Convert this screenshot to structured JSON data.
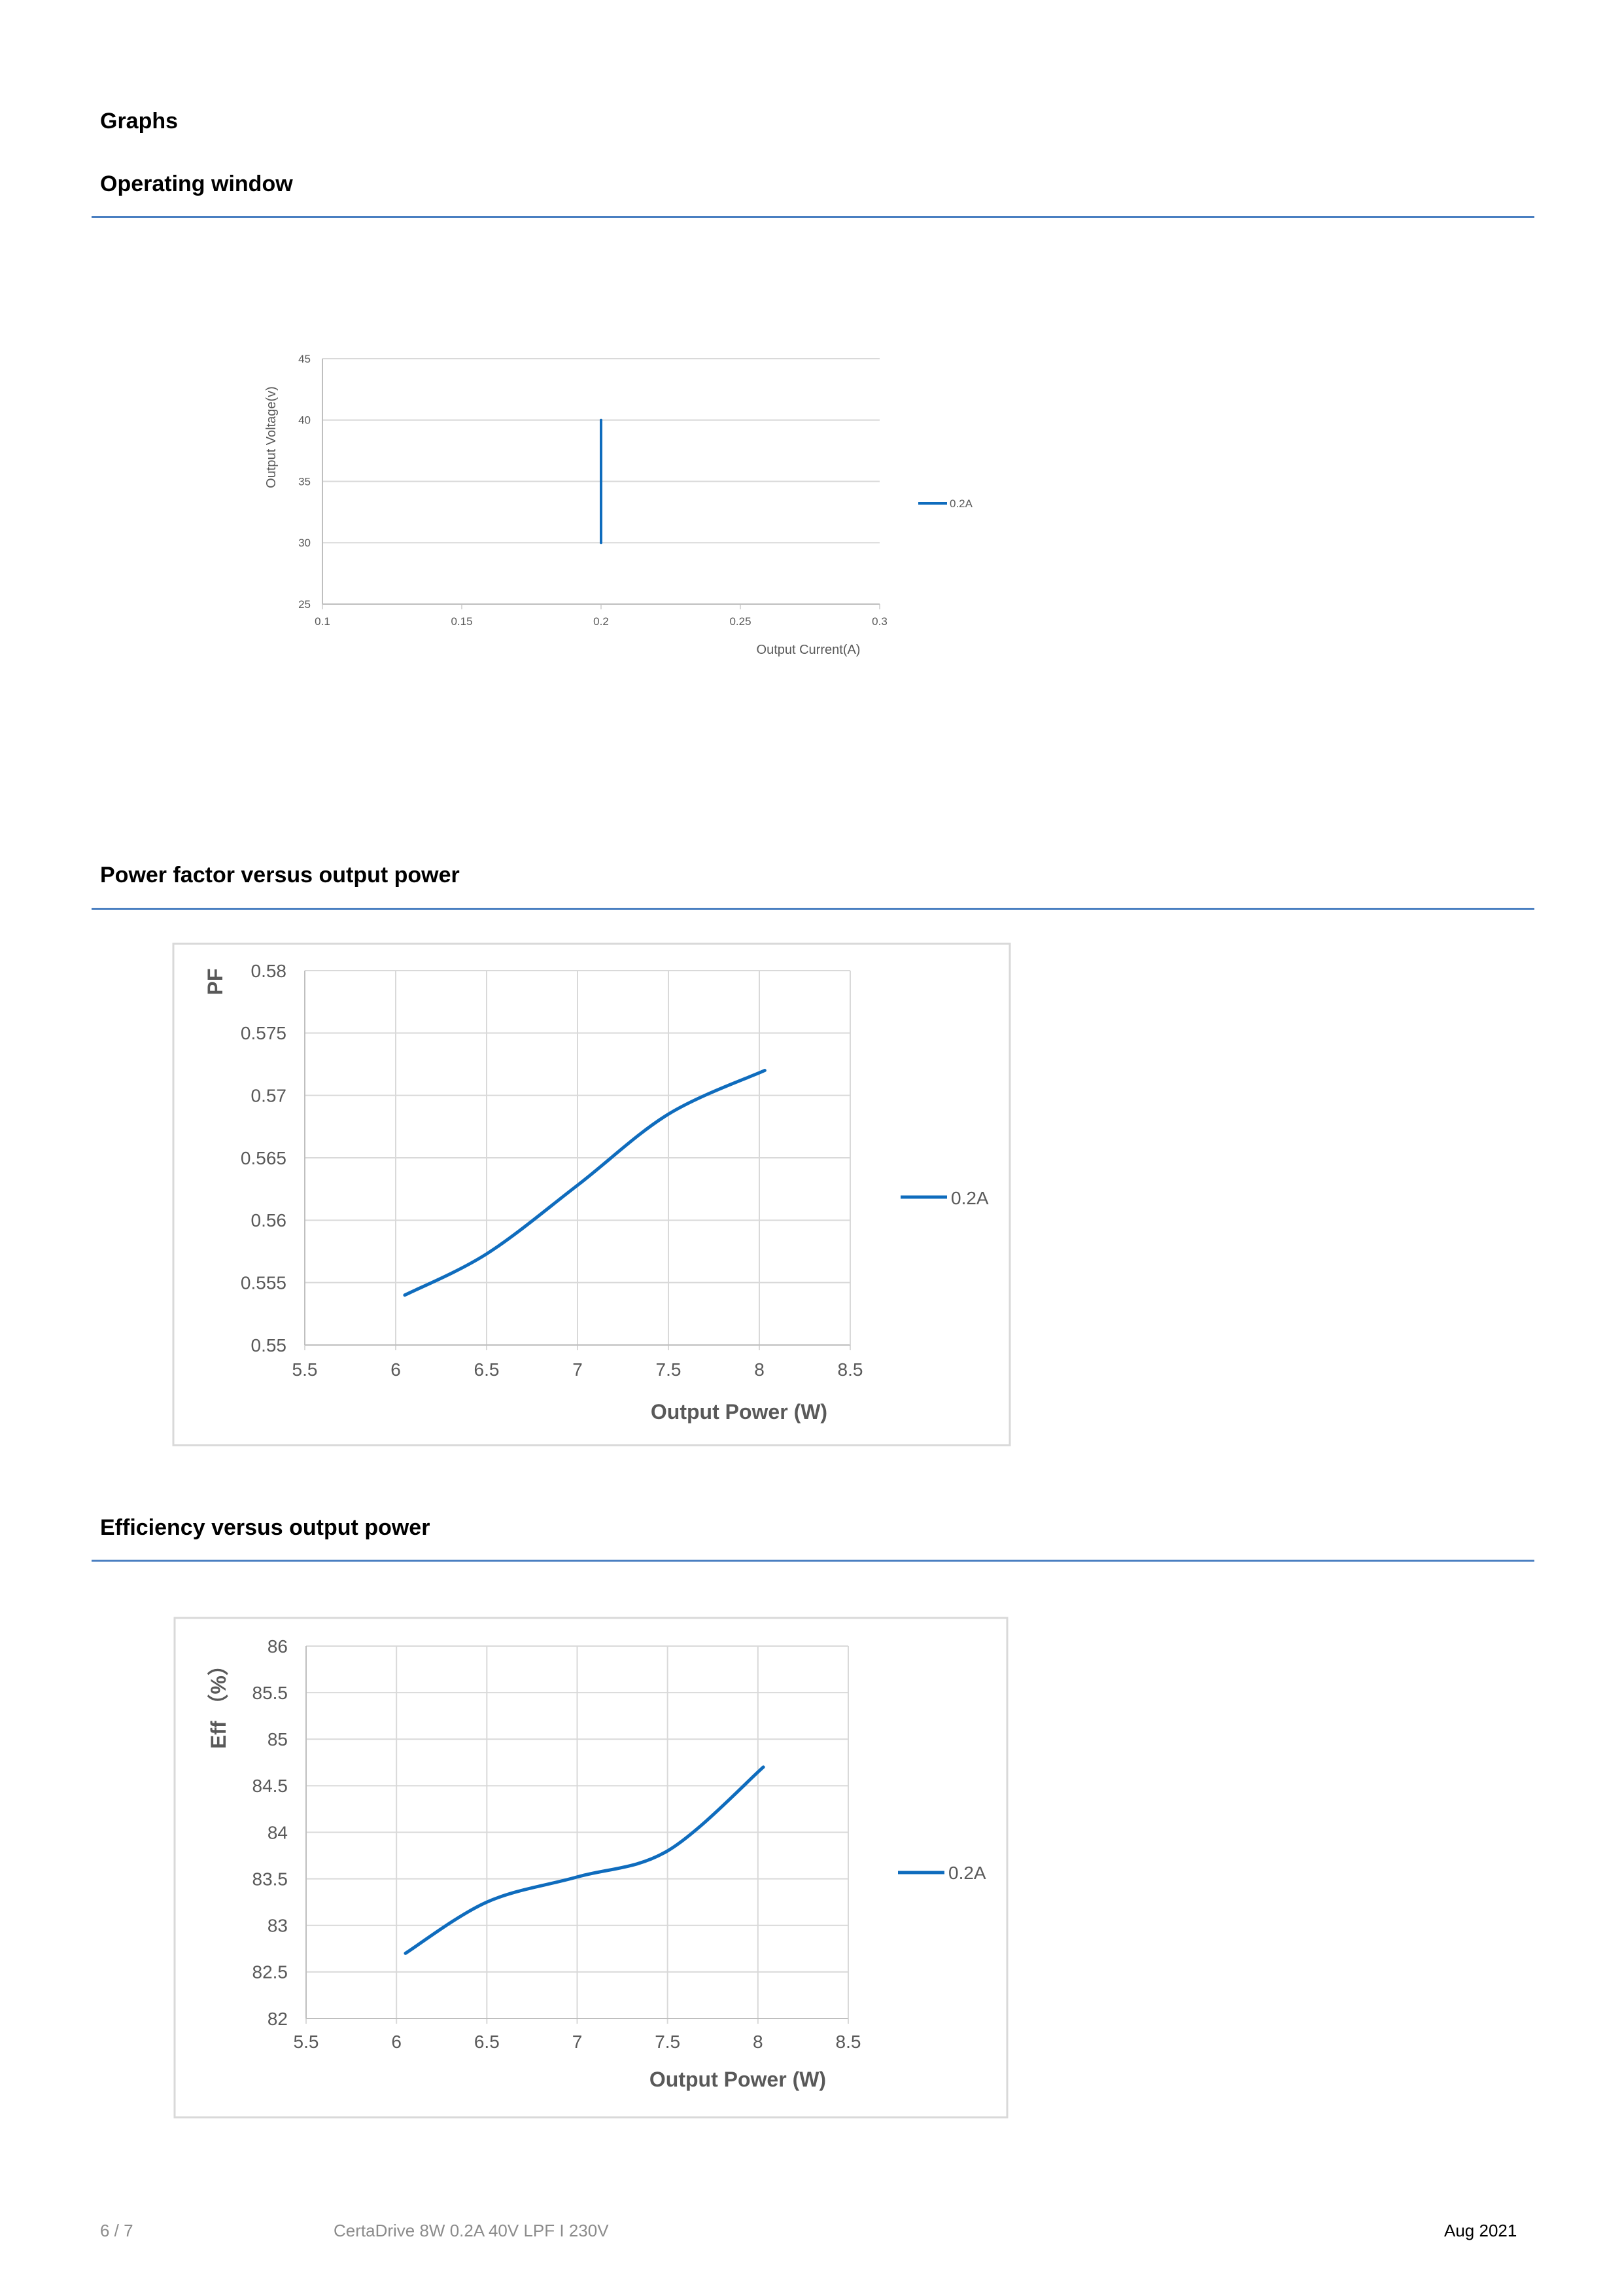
{
  "section_title": "Graphs",
  "sections": {
    "operating_window": "Operating window",
    "power_factor": "Power factor versus output power",
    "efficiency": "Efficiency versus output power"
  },
  "footer": {
    "page": "6 / 7",
    "product": "CertaDrive 8W 0.2A 40V LPF I 230V",
    "date": "Aug 2021"
  },
  "colors": {
    "series": "#0f6cbd",
    "rule": "#4a7fc1",
    "grid": "#d9d9d9",
    "text": "#595959"
  },
  "chart_data": [
    {
      "id": "operating-window",
      "type": "line",
      "title": "",
      "xlabel": "Output Current(A)",
      "ylabel": "Output Voltage(v)",
      "xlim": [
        0.1,
        0.3
      ],
      "ylim": [
        25,
        45
      ],
      "xticks": [
        0.1,
        0.15,
        0.2,
        0.25,
        0.3
      ],
      "yticks": [
        25,
        30,
        35,
        40,
        45
      ],
      "grid": "horizontal",
      "legend": "right",
      "series": [
        {
          "name": "0.2A",
          "x": [
            0.2,
            0.2
          ],
          "y": [
            30,
            40
          ]
        }
      ]
    },
    {
      "id": "power-factor",
      "type": "line",
      "title": "",
      "xlabel": "Output Power (W)",
      "ylabel": "PF",
      "xlim": [
        5.5,
        8.5
      ],
      "ylim": [
        0.55,
        0.58
      ],
      "xticks": [
        5.5,
        6,
        6.5,
        7,
        7.5,
        8,
        8.5
      ],
      "yticks": [
        0.55,
        0.555,
        0.56,
        0.565,
        0.57,
        0.575,
        0.58
      ],
      "grid": "both",
      "legend": "right",
      "series": [
        {
          "name": "0.2A",
          "x": [
            6.05,
            6.5,
            7.0,
            7.5,
            8.03
          ],
          "y": [
            0.554,
            0.5573,
            0.5628,
            0.5685,
            0.572
          ]
        }
      ]
    },
    {
      "id": "efficiency",
      "type": "line",
      "title": "",
      "xlabel": "Output Power (W)",
      "ylabel": "Eff （%）",
      "xlim": [
        5.5,
        8.5
      ],
      "ylim": [
        82,
        86
      ],
      "xticks": [
        5.5,
        6,
        6.5,
        7,
        7.5,
        8,
        8.5
      ],
      "yticks": [
        82,
        82.5,
        83,
        83.5,
        84,
        84.5,
        85,
        85.5,
        86
      ],
      "grid": "both",
      "legend": "right",
      "series": [
        {
          "name": "0.2A",
          "x": [
            6.05,
            6.5,
            7.0,
            7.5,
            8.03
          ],
          "y": [
            82.7,
            83.25,
            83.52,
            83.8,
            84.7
          ]
        }
      ]
    }
  ]
}
